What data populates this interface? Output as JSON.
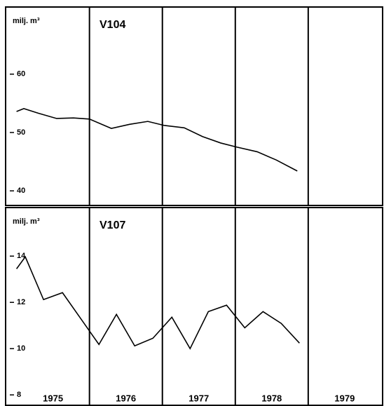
{
  "chart_data": [
    {
      "type": "line",
      "title": "V104",
      "ylabel": "milj. m³",
      "x": [
        1975.0,
        1975.1,
        1975.3,
        1975.55,
        1975.78,
        1976.0,
        1976.3,
        1976.55,
        1976.8,
        1977.03,
        1977.3,
        1977.55,
        1977.8,
        1978.02,
        1978.3,
        1978.56,
        1978.85
      ],
      "series": [
        {
          "color": "#000000",
          "values": [
            53.6,
            54.1,
            53.3,
            52.4,
            52.5,
            52.3,
            50.7,
            51.4,
            51.9,
            51.2,
            50.8,
            49.3,
            48.2,
            47.5,
            46.7,
            45.3,
            43.4
          ]
        }
      ],
      "xlim": [
        1974.85,
        1980.02
      ],
      "ylim": [
        37.5,
        71.5
      ],
      "yticks": [
        40,
        50,
        60
      ],
      "year_lines": [
        1976,
        1977,
        1978,
        1979
      ]
    },
    {
      "type": "line",
      "title": "V107",
      "ylabel": "milj. m³",
      "x": [
        1975.0,
        1975.12,
        1975.37,
        1975.63,
        1975.88,
        1976.13,
        1976.37,
        1976.62,
        1976.87,
        1977.13,
        1977.38,
        1977.63,
        1977.88,
        1978.13,
        1978.38,
        1978.63,
        1978.88
      ],
      "series": [
        {
          "color": "#000000",
          "values": [
            13.45,
            13.97,
            12.12,
            12.42,
            11.3,
            10.18,
            11.48,
            10.12,
            10.45,
            11.36,
            10.0,
            11.6,
            11.88,
            10.9,
            11.6,
            11.09,
            10.24
          ]
        }
      ],
      "xlim": [
        1974.85,
        1980.02
      ],
      "ylim": [
        7.55,
        16.1
      ],
      "yticks": [
        8,
        10,
        12,
        14
      ],
      "xticks": [
        {
          "value": 1975.5,
          "label": "1975"
        },
        {
          "value": 1976.5,
          "label": "1976"
        },
        {
          "value": 1977.5,
          "label": "1977"
        },
        {
          "value": 1978.5,
          "label": "1978"
        },
        {
          "value": 1979.5,
          "label": "1979"
        }
      ],
      "year_lines": [
        1976,
        1977,
        1978,
        1979
      ]
    }
  ]
}
